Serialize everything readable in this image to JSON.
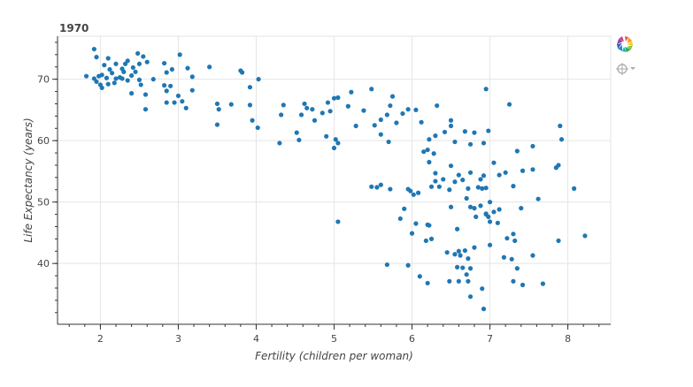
{
  "chart_data": {
    "type": "scatter",
    "title": "1970",
    "xlabel": "Fertility (children per woman)",
    "ylabel": "Life Expectancy (years)",
    "xlim": [
      1.45,
      8.55
    ],
    "ylim": [
      30.1,
      77.0
    ],
    "x_ticks": [
      2,
      3,
      4,
      5,
      6,
      7,
      8
    ],
    "y_ticks": [
      40,
      50,
      60,
      70
    ],
    "x_minor_step": 0.2,
    "y_minor_step": 2,
    "grid": true,
    "point_color": "#1f77b4",
    "points": [
      [
        1.92,
        74.9
      ],
      [
        1.95,
        73.6
      ],
      [
        2.1,
        73.4
      ],
      [
        2.2,
        72.5
      ],
      [
        2.28,
        71.7
      ],
      [
        2.32,
        72.5
      ],
      [
        2.35,
        73.0
      ],
      [
        2.48,
        74.2
      ],
      [
        2.55,
        73.7
      ],
      [
        2.6,
        72.8
      ],
      [
        2.05,
        72.3
      ],
      [
        2.12,
        71.6
      ],
      [
        2.15,
        71.0
      ],
      [
        2.3,
        71.2
      ],
      [
        2.42,
        71.9
      ],
      [
        2.5,
        72.5
      ],
      [
        2.45,
        71.2
      ],
      [
        2.4,
        70.6
      ],
      [
        2.25,
        70.3
      ],
      [
        2.2,
        70.1
      ],
      [
        2.08,
        70.2
      ],
      [
        2.02,
        70.7
      ],
      [
        1.98,
        70.5
      ],
      [
        1.92,
        70.1
      ],
      [
        1.82,
        70.5
      ],
      [
        1.95,
        69.6
      ],
      [
        2.0,
        69.1
      ],
      [
        2.02,
        68.6
      ],
      [
        2.1,
        69.2
      ],
      [
        2.18,
        69.4
      ],
      [
        2.28,
        70.1
      ],
      [
        2.35,
        69.8
      ],
      [
        2.5,
        69.9
      ],
      [
        2.68,
        70.0
      ],
      [
        2.82,
        72.6
      ],
      [
        2.85,
        71.1
      ],
      [
        2.92,
        71.6
      ],
      [
        3.02,
        74.0
      ],
      [
        3.12,
        71.8
      ],
      [
        3.18,
        70.4
      ],
      [
        3.4,
        72.0
      ],
      [
        2.82,
        69.0
      ],
      [
        2.9,
        68.9
      ],
      [
        3.18,
        68.2
      ],
      [
        2.52,
        69.1
      ],
      [
        2.58,
        67.5
      ],
      [
        2.4,
        67.7
      ],
      [
        2.85,
        68.1
      ],
      [
        3.0,
        67.3
      ],
      [
        2.85,
        66.2
      ],
      [
        2.95,
        66.2
      ],
      [
        3.05,
        66.4
      ],
      [
        3.1,
        65.3
      ],
      [
        2.58,
        65.1
      ],
      [
        3.5,
        66.0
      ],
      [
        3.52,
        65.1
      ],
      [
        3.68,
        65.9
      ],
      [
        3.8,
        71.4
      ],
      [
        3.82,
        71.1
      ],
      [
        3.92,
        65.8
      ],
      [
        3.92,
        68.7
      ],
      [
        4.03,
        70.0
      ],
      [
        3.95,
        63.3
      ],
      [
        4.02,
        62.1
      ],
      [
        3.5,
        62.6
      ],
      [
        4.3,
        59.6
      ],
      [
        4.32,
        64.2
      ],
      [
        4.35,
        65.8
      ],
      [
        4.52,
        61.3
      ],
      [
        4.55,
        60.1
      ],
      [
        4.58,
        64.2
      ],
      [
        4.62,
        66.0
      ],
      [
        4.65,
        65.3
      ],
      [
        4.72,
        65.1
      ],
      [
        4.75,
        63.3
      ],
      [
        4.85,
        64.5
      ],
      [
        4.92,
        66.2
      ],
      [
        4.95,
        64.8
      ],
      [
        5.0,
        66.9
      ],
      [
        5.05,
        67.0
      ],
      [
        5.02,
        60.2
      ],
      [
        5.05,
        59.6
      ],
      [
        5.0,
        58.8
      ],
      [
        4.9,
        60.7
      ],
      [
        5.22,
        67.9
      ],
      [
        5.18,
        65.6
      ],
      [
        5.28,
        62.4
      ],
      [
        5.38,
        64.9
      ],
      [
        5.48,
        68.4
      ],
      [
        5.52,
        62.5
      ],
      [
        5.6,
        63.4
      ],
      [
        5.68,
        64.2
      ],
      [
        5.75,
        67.2
      ],
      [
        5.72,
        65.7
      ],
      [
        5.8,
        62.9
      ],
      [
        5.88,
        64.4
      ],
      [
        5.95,
        65.1
      ],
      [
        6.05,
        65.0
      ],
      [
        6.12,
        63.0
      ],
      [
        6.32,
        65.7
      ],
      [
        6.22,
        60.2
      ],
      [
        6.3,
        60.8
      ],
      [
        6.42,
        61.4
      ],
      [
        6.5,
        63.3
      ],
      [
        6.5,
        62.4
      ],
      [
        6.68,
        61.5
      ],
      [
        6.8,
        61.3
      ],
      [
        6.92,
        59.6
      ],
      [
        6.95,
        68.4
      ],
      [
        6.98,
        61.6
      ],
      [
        6.55,
        59.8
      ],
      [
        6.75,
        59.4
      ],
      [
        5.7,
        59.8
      ],
      [
        5.6,
        61.0
      ],
      [
        5.05,
        46.8
      ],
      [
        5.48,
        52.5
      ],
      [
        5.55,
        52.4
      ],
      [
        5.6,
        52.8
      ],
      [
        5.72,
        52.1
      ],
      [
        5.85,
        47.3
      ],
      [
        5.9,
        48.9
      ],
      [
        5.98,
        51.8
      ],
      [
        5.95,
        52.1
      ],
      [
        6.02,
        51.2
      ],
      [
        6.08,
        51.5
      ],
      [
        6.15,
        58.2
      ],
      [
        6.2,
        58.5
      ],
      [
        6.28,
        57.9
      ],
      [
        6.22,
        56.5
      ],
      [
        6.3,
        54.7
      ],
      [
        6.4,
        53.7
      ],
      [
        6.25,
        52.5
      ],
      [
        6.3,
        53.4
      ],
      [
        6.35,
        52.5
      ],
      [
        6.48,
        52.0
      ],
      [
        6.5,
        55.9
      ],
      [
        6.55,
        53.3
      ],
      [
        6.6,
        54.4
      ],
      [
        6.65,
        53.6
      ],
      [
        6.75,
        54.8
      ],
      [
        6.72,
        52.2
      ],
      [
        6.85,
        52.4
      ],
      [
        6.88,
        53.7
      ],
      [
        6.92,
        54.3
      ],
      [
        6.9,
        52.2
      ],
      [
        6.95,
        52.3
      ],
      [
        7.0,
        50.0
      ],
      [
        7.05,
        56.4
      ],
      [
        7.12,
        54.4
      ],
      [
        7.2,
        54.8
      ],
      [
        7.3,
        52.6
      ],
      [
        7.35,
        58.3
      ],
      [
        7.42,
        55.1
      ],
      [
        7.55,
        59.1
      ],
      [
        7.55,
        55.3
      ],
      [
        7.25,
        65.9
      ],
      [
        7.4,
        49.0
      ],
      [
        7.62,
        50.5
      ],
      [
        7.9,
        62.4
      ],
      [
        7.92,
        60.2
      ],
      [
        7.88,
        56.0
      ],
      [
        7.85,
        55.6
      ],
      [
        8.08,
        52.2
      ],
      [
        6.05,
        46.5
      ],
      [
        6.2,
        46.3
      ],
      [
        6.22,
        46.2
      ],
      [
        6.25,
        44.0
      ],
      [
        6.0,
        44.9
      ],
      [
        6.18,
        43.7
      ],
      [
        6.7,
        50.6
      ],
      [
        6.75,
        49.2
      ],
      [
        6.8,
        49.0
      ],
      [
        6.88,
        49.4
      ],
      [
        6.82,
        47.6
      ],
      [
        6.95,
        48.1
      ],
      [
        6.98,
        47.6
      ],
      [
        7.05,
        48.4
      ],
      [
        7.0,
        46.8
      ],
      [
        7.12,
        48.8
      ],
      [
        7.1,
        46.6
      ],
      [
        6.95,
        48.0
      ],
      [
        6.5,
        49.2
      ],
      [
        6.58,
        45.6
      ],
      [
        6.45,
        41.8
      ],
      [
        6.55,
        41.5
      ],
      [
        6.6,
        42.0
      ],
      [
        6.68,
        42.1
      ],
      [
        6.62,
        41.3
      ],
      [
        6.72,
        40.8
      ],
      [
        6.58,
        39.4
      ],
      [
        6.65,
        39.3
      ],
      [
        6.75,
        39.2
      ],
      [
        6.7,
        38.2
      ],
      [
        6.8,
        42.6
      ],
      [
        6.6,
        37.1
      ],
      [
        6.72,
        37.1
      ],
      [
        6.48,
        37.1
      ],
      [
        6.75,
        34.6
      ],
      [
        6.9,
        35.9
      ],
      [
        6.92,
        32.6
      ],
      [
        7.0,
        43.0
      ],
      [
        7.22,
        44.1
      ],
      [
        7.3,
        44.8
      ],
      [
        7.32,
        43.7
      ],
      [
        7.28,
        40.7
      ],
      [
        7.18,
        41.0
      ],
      [
        7.35,
        39.2
      ],
      [
        7.42,
        36.5
      ],
      [
        7.3,
        37.1
      ],
      [
        7.55,
        41.3
      ],
      [
        7.68,
        36.7
      ],
      [
        7.88,
        43.7
      ],
      [
        8.22,
        44.5
      ],
      [
        5.68,
        39.8
      ],
      [
        5.95,
        39.7
      ],
      [
        6.1,
        37.9
      ],
      [
        6.2,
        36.8
      ]
    ]
  },
  "toolbar": {
    "tools": [
      {
        "name": "bokeh-logo-icon",
        "clickable": true
      },
      {
        "name": "crosshair-icon",
        "clickable": true
      }
    ]
  }
}
